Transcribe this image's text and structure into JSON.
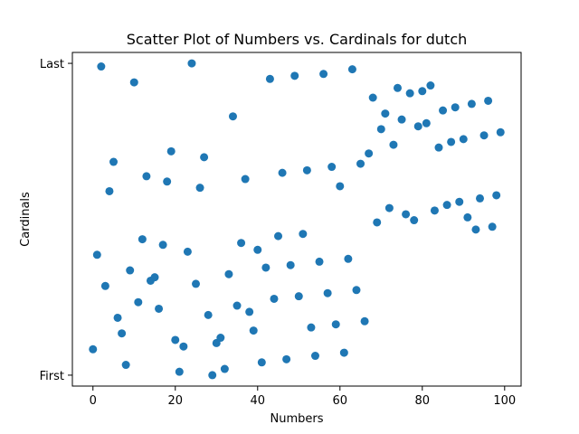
{
  "chart_data": {
    "type": "scatter",
    "title": "Scatter Plot of Numbers vs. Cardinals for dutch",
    "xlabel": "Numbers",
    "ylabel": "Cardinals",
    "xlim": [
      -5,
      104
    ],
    "ylim": [
      -0.035,
      1.035
    ],
    "x_ticks": [
      0,
      20,
      40,
      60,
      80,
      100
    ],
    "y_ticks": [
      {
        "value": 0,
        "label": "First"
      },
      {
        "value": 1,
        "label": "Last"
      }
    ],
    "grid": false,
    "marker_color": "#1f77b4",
    "points": [
      {
        "x": 0,
        "y": 0.083
      },
      {
        "x": 1,
        "y": 0.386
      },
      {
        "x": 2,
        "y": 0.99
      },
      {
        "x": 3,
        "y": 0.286
      },
      {
        "x": 4,
        "y": 0.59
      },
      {
        "x": 5,
        "y": 0.684
      },
      {
        "x": 6,
        "y": 0.184
      },
      {
        "x": 7,
        "y": 0.134
      },
      {
        "x": 8,
        "y": 0.033
      },
      {
        "x": 9,
        "y": 0.336
      },
      {
        "x": 10,
        "y": 0.939
      },
      {
        "x": 11,
        "y": 0.234
      },
      {
        "x": 12,
        "y": 0.436
      },
      {
        "x": 13,
        "y": 0.638
      },
      {
        "x": 14,
        "y": 0.303
      },
      {
        "x": 15,
        "y": 0.314
      },
      {
        "x": 16,
        "y": 0.213
      },
      {
        "x": 17,
        "y": 0.418
      },
      {
        "x": 18,
        "y": 0.621
      },
      {
        "x": 19,
        "y": 0.718
      },
      {
        "x": 20,
        "y": 0.113
      },
      {
        "x": 21,
        "y": 0.011
      },
      {
        "x": 22,
        "y": 0.092
      },
      {
        "x": 23,
        "y": 0.396
      },
      {
        "x": 24,
        "y": 1.0
      },
      {
        "x": 25,
        "y": 0.293
      },
      {
        "x": 26,
        "y": 0.601
      },
      {
        "x": 27,
        "y": 0.699
      },
      {
        "x": 28,
        "y": 0.193
      },
      {
        "x": 29,
        "y": 0.0
      },
      {
        "x": 30,
        "y": 0.103
      },
      {
        "x": 31,
        "y": 0.12
      },
      {
        "x": 32,
        "y": 0.02
      },
      {
        "x": 33,
        "y": 0.324
      },
      {
        "x": 34,
        "y": 0.83
      },
      {
        "x": 35,
        "y": 0.223
      },
      {
        "x": 36,
        "y": 0.424
      },
      {
        "x": 37,
        "y": 0.629
      },
      {
        "x": 38,
        "y": 0.203
      },
      {
        "x": 39,
        "y": 0.143
      },
      {
        "x": 40,
        "y": 0.402
      },
      {
        "x": 41,
        "y": 0.041
      },
      {
        "x": 42,
        "y": 0.345
      },
      {
        "x": 43,
        "y": 0.95
      },
      {
        "x": 44,
        "y": 0.245
      },
      {
        "x": 45,
        "y": 0.446
      },
      {
        "x": 46,
        "y": 0.649
      },
      {
        "x": 47,
        "y": 0.051
      },
      {
        "x": 48,
        "y": 0.353
      },
      {
        "x": 49,
        "y": 0.96
      },
      {
        "x": 50,
        "y": 0.253
      },
      {
        "x": 51,
        "y": 0.453
      },
      {
        "x": 52,
        "y": 0.657
      },
      {
        "x": 53,
        "y": 0.153
      },
      {
        "x": 54,
        "y": 0.062
      },
      {
        "x": 55,
        "y": 0.364
      },
      {
        "x": 56,
        "y": 0.966
      },
      {
        "x": 57,
        "y": 0.263
      },
      {
        "x": 58,
        "y": 0.668
      },
      {
        "x": 59,
        "y": 0.163
      },
      {
        "x": 60,
        "y": 0.606
      },
      {
        "x": 61,
        "y": 0.072
      },
      {
        "x": 62,
        "y": 0.373
      },
      {
        "x": 63,
        "y": 0.981
      },
      {
        "x": 64,
        "y": 0.273
      },
      {
        "x": 65,
        "y": 0.678
      },
      {
        "x": 66,
        "y": 0.173
      },
      {
        "x": 67,
        "y": 0.711
      },
      {
        "x": 68,
        "y": 0.89
      },
      {
        "x": 69,
        "y": 0.49
      },
      {
        "x": 70,
        "y": 0.789
      },
      {
        "x": 71,
        "y": 0.839
      },
      {
        "x": 72,
        "y": 0.536
      },
      {
        "x": 73,
        "y": 0.739
      },
      {
        "x": 74,
        "y": 0.921
      },
      {
        "x": 75,
        "y": 0.82
      },
      {
        "x": 76,
        "y": 0.516
      },
      {
        "x": 77,
        "y": 0.904
      },
      {
        "x": 78,
        "y": 0.497
      },
      {
        "x": 79,
        "y": 0.798
      },
      {
        "x": 80,
        "y": 0.911
      },
      {
        "x": 81,
        "y": 0.808
      },
      {
        "x": 82,
        "y": 0.929
      },
      {
        "x": 83,
        "y": 0.528
      },
      {
        "x": 84,
        "y": 0.73
      },
      {
        "x": 85,
        "y": 0.849
      },
      {
        "x": 86,
        "y": 0.546
      },
      {
        "x": 87,
        "y": 0.748
      },
      {
        "x": 88,
        "y": 0.859
      },
      {
        "x": 89,
        "y": 0.556
      },
      {
        "x": 90,
        "y": 0.757
      },
      {
        "x": 91,
        "y": 0.506
      },
      {
        "x": 92,
        "y": 0.87
      },
      {
        "x": 93,
        "y": 0.467
      },
      {
        "x": 94,
        "y": 0.567
      },
      {
        "x": 95,
        "y": 0.769
      },
      {
        "x": 96,
        "y": 0.88
      },
      {
        "x": 97,
        "y": 0.476
      },
      {
        "x": 98,
        "y": 0.577
      },
      {
        "x": 99,
        "y": 0.779
      }
    ]
  }
}
